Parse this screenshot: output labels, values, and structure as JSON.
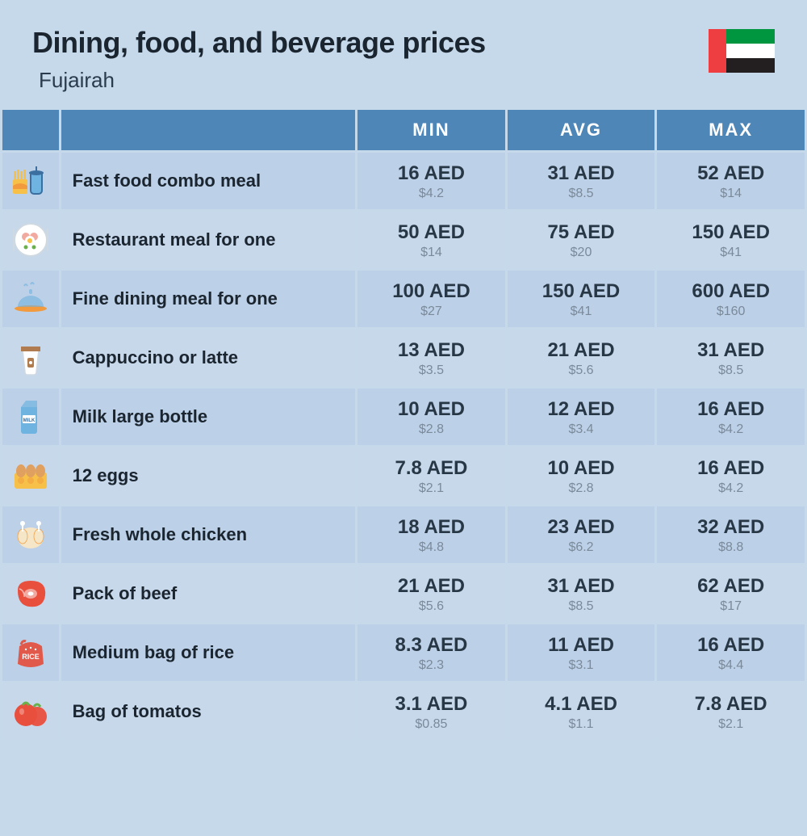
{
  "header": {
    "title": "Dining, food, and beverage prices",
    "subtitle": "Fujairah"
  },
  "columns": {
    "min": "MIN",
    "avg": "AVG",
    "max": "MAX"
  },
  "flag": {
    "colors": {
      "red": "#ef3e42",
      "green": "#00963f",
      "white": "#ffffff",
      "black": "#231f20"
    }
  },
  "icon_colors": {
    "yellow": "#f7c049",
    "orange": "#f29a3e",
    "red": "#e94f3d",
    "blue": "#6fb3e0",
    "blue_dark": "#3a6fa0",
    "brown": "#b07c4f",
    "white": "#ffffff",
    "pink": "#f2a9a0",
    "grey": "#cfd9e2",
    "egg_brown": "#e0a060",
    "rice_red": "#e0594a",
    "green": "#6ab04c",
    "cream": "#f5e6c8"
  },
  "rows": [
    {
      "icon": "fastfood",
      "name": "Fast food combo meal",
      "min": {
        "aed": "16 AED",
        "usd": "$4.2"
      },
      "avg": {
        "aed": "31 AED",
        "usd": "$8.5"
      },
      "max": {
        "aed": "52 AED",
        "usd": "$14"
      }
    },
    {
      "icon": "restaurant",
      "name": "Restaurant meal for one",
      "min": {
        "aed": "50 AED",
        "usd": "$14"
      },
      "avg": {
        "aed": "75 AED",
        "usd": "$20"
      },
      "max": {
        "aed": "150 AED",
        "usd": "$41"
      }
    },
    {
      "icon": "finedining",
      "name": "Fine dining meal for one",
      "min": {
        "aed": "100 AED",
        "usd": "$27"
      },
      "avg": {
        "aed": "150 AED",
        "usd": "$41"
      },
      "max": {
        "aed": "600 AED",
        "usd": "$160"
      }
    },
    {
      "icon": "coffee",
      "name": "Cappuccino or latte",
      "min": {
        "aed": "13 AED",
        "usd": "$3.5"
      },
      "avg": {
        "aed": "21 AED",
        "usd": "$5.6"
      },
      "max": {
        "aed": "31 AED",
        "usd": "$8.5"
      }
    },
    {
      "icon": "milk",
      "name": "Milk large bottle",
      "min": {
        "aed": "10 AED",
        "usd": "$2.8"
      },
      "avg": {
        "aed": "12 AED",
        "usd": "$3.4"
      },
      "max": {
        "aed": "16 AED",
        "usd": "$4.2"
      }
    },
    {
      "icon": "eggs",
      "name": "12 eggs",
      "min": {
        "aed": "7.8 AED",
        "usd": "$2.1"
      },
      "avg": {
        "aed": "10 AED",
        "usd": "$2.8"
      },
      "max": {
        "aed": "16 AED",
        "usd": "$4.2"
      }
    },
    {
      "icon": "chicken",
      "name": "Fresh whole chicken",
      "min": {
        "aed": "18 AED",
        "usd": "$4.8"
      },
      "avg": {
        "aed": "23 AED",
        "usd": "$6.2"
      },
      "max": {
        "aed": "32 AED",
        "usd": "$8.8"
      }
    },
    {
      "icon": "beef",
      "name": "Pack of beef",
      "min": {
        "aed": "21 AED",
        "usd": "$5.6"
      },
      "avg": {
        "aed": "31 AED",
        "usd": "$8.5"
      },
      "max": {
        "aed": "62 AED",
        "usd": "$17"
      }
    },
    {
      "icon": "rice",
      "name": "Medium bag of rice",
      "min": {
        "aed": "8.3 AED",
        "usd": "$2.3"
      },
      "avg": {
        "aed": "11 AED",
        "usd": "$3.1"
      },
      "max": {
        "aed": "16 AED",
        "usd": "$4.4"
      }
    },
    {
      "icon": "tomato",
      "name": "Bag of tomatos",
      "min": {
        "aed": "3.1 AED",
        "usd": "$0.85"
      },
      "avg": {
        "aed": "4.1 AED",
        "usd": "$1.1"
      },
      "max": {
        "aed": "7.8 AED",
        "usd": "$2.1"
      }
    }
  ]
}
